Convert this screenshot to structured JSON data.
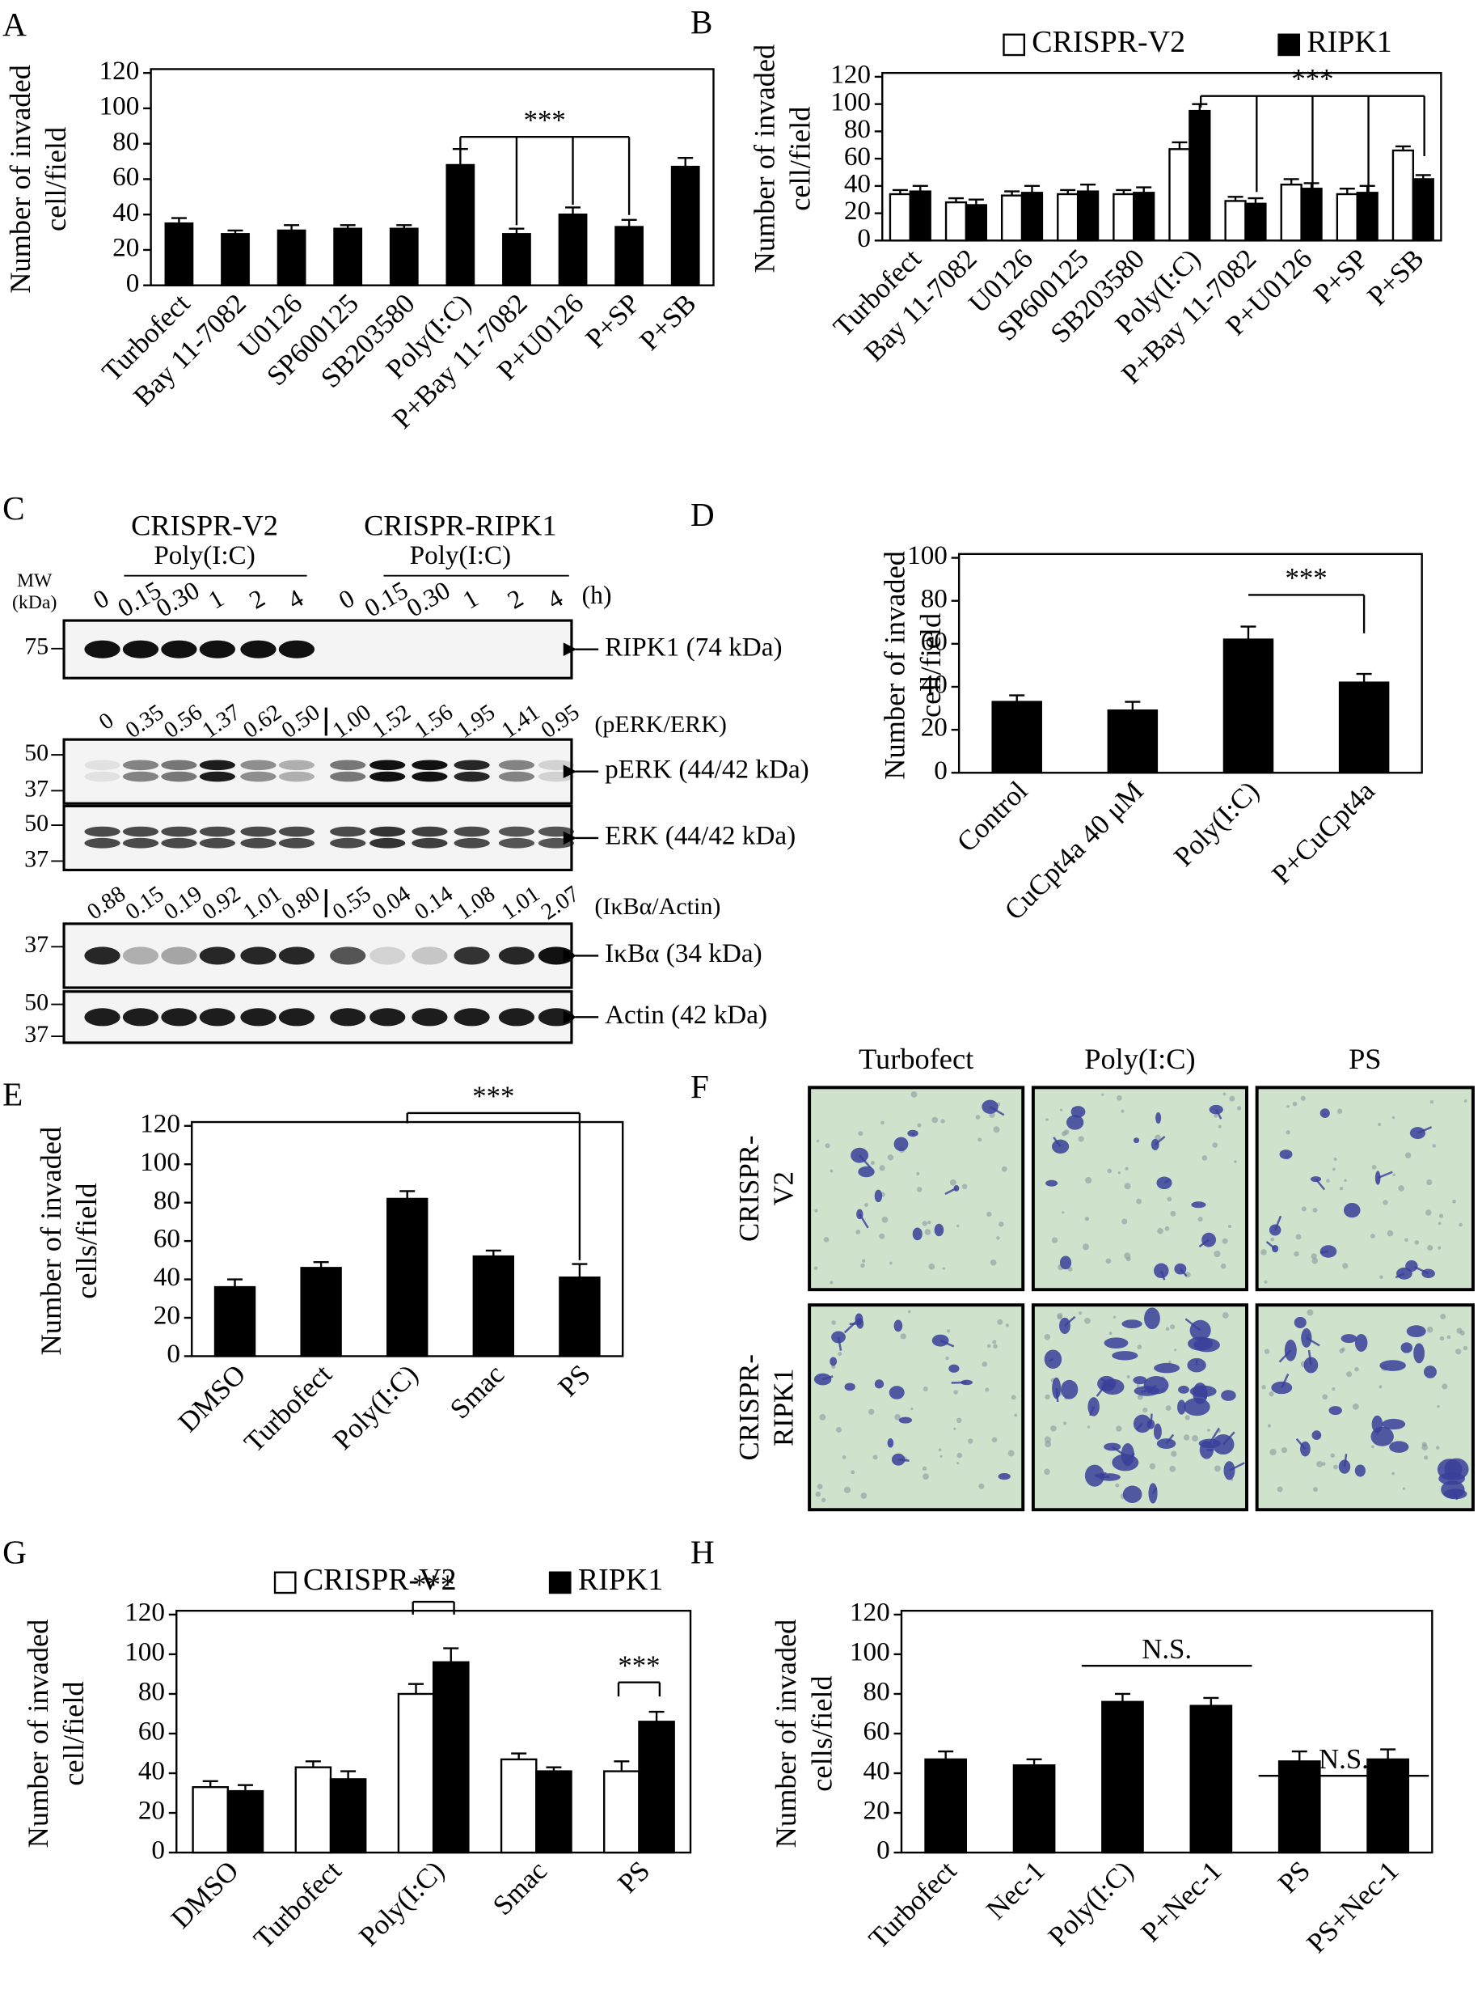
{
  "chart_data": [
    {
      "panel": "A",
      "type": "bar",
      "ylabel": [
        "Number of invaded",
        "cell/field"
      ],
      "categories": [
        "Turbofect",
        "Bay 11-7082",
        "U0126",
        "SP600125",
        "SB203580",
        "Poly(I:C)",
        "P+Bay 11-7082",
        "P+U0126",
        "P+SP",
        "P+SB"
      ],
      "values": [
        35,
        29,
        31,
        32,
        32,
        68,
        29,
        40,
        33,
        67
      ],
      "errors": [
        3,
        2,
        3,
        2,
        2,
        9,
        3,
        4,
        4,
        5
      ],
      "color": "#000000",
      "ylim": [
        0,
        120
      ],
      "yticks": [
        0,
        20,
        40,
        60,
        80,
        100,
        120
      ],
      "annotations": [
        "***"
      ]
    },
    {
      "panel": "B",
      "type": "bar",
      "ylabel": [
        "Number of invaded",
        "cell/field"
      ],
      "categories": [
        "Turbofect",
        "Bay 11-7082",
        "U0126",
        "SP600125",
        "SB203580",
        "Poly(I:C)",
        "P+Bay 11-7082",
        "P+U0126",
        "P+SP",
        "P+SB"
      ],
      "series": [
        {
          "name": "CRISPR-V2",
          "color": "#ffffff",
          "values": [
            34,
            28,
            33,
            34,
            34,
            67,
            29,
            41,
            34,
            66
          ],
          "errors": [
            3,
            3,
            3,
            3,
            3,
            5,
            3,
            4,
            4,
            3
          ]
        },
        {
          "name": "RIPK1",
          "color": "#000000",
          "values": [
            36,
            26,
            35,
            36,
            35,
            95,
            27,
            38,
            35,
            45
          ],
          "errors": [
            4,
            4,
            5,
            5,
            4,
            5,
            4,
            4,
            5,
            3
          ]
        }
      ],
      "legend": "top",
      "ylim": [
        0,
        120
      ],
      "yticks": [
        0,
        20,
        40,
        60,
        80,
        100,
        120
      ],
      "annotations": [
        "***"
      ]
    },
    {
      "panel": "D",
      "type": "bar",
      "ylabel": [
        "Number of invaded",
        "cell/field"
      ],
      "categories": [
        "Control",
        "CuCpt4a 40 μM",
        "Poly(I:C)",
        "P+CuCpt4a"
      ],
      "values": [
        33,
        29,
        62,
        42
      ],
      "errors": [
        3,
        4,
        6,
        4
      ],
      "color": "#000000",
      "ylim": [
        0,
        100
      ],
      "yticks": [
        0,
        20,
        40,
        60,
        80,
        100
      ],
      "annotations": [
        "***"
      ]
    },
    {
      "panel": "E",
      "type": "bar",
      "ylabel": [
        "Number of invaded",
        "cells/field"
      ],
      "categories": [
        "DMSO",
        "Turbofect",
        "Poly(I:C)",
        "Smac",
        "PS"
      ],
      "values": [
        36,
        46,
        82,
        52,
        41
      ],
      "errors": [
        4,
        3,
        4,
        3,
        7
      ],
      "color": "#000000",
      "ylim": [
        0,
        120
      ],
      "yticks": [
        0,
        20,
        40,
        60,
        80,
        100,
        120
      ],
      "annotations": [
        "***"
      ]
    },
    {
      "panel": "G",
      "type": "bar",
      "ylabel": [
        "Number of invaded",
        "cell/field"
      ],
      "categories": [
        "DMSO",
        "Turbofect",
        "Poly(I:C)",
        "Smac",
        "PS"
      ],
      "series": [
        {
          "name": "CRISPR-V2",
          "color": "#ffffff",
          "values": [
            33,
            43,
            80,
            47,
            41
          ],
          "errors": [
            3,
            3,
            5,
            3,
            5
          ]
        },
        {
          "name": "RIPK1",
          "color": "#000000",
          "values": [
            31,
            37,
            96,
            41,
            66
          ],
          "errors": [
            3,
            4,
            7,
            2,
            5
          ]
        }
      ],
      "legend": "top",
      "ylim": [
        0,
        120
      ],
      "yticks": [
        0,
        20,
        40,
        60,
        80,
        100,
        120
      ],
      "annotations": [
        "***",
        "***"
      ]
    },
    {
      "panel": "H",
      "type": "bar",
      "ylabel": [
        "Number of  invaded",
        "cells/field"
      ],
      "categories": [
        "Turbofect",
        "Nec-1",
        "Poly(I:C)",
        "P+Nec-1",
        "PS",
        "PS+Nec-1"
      ],
      "values": [
        47,
        44,
        76,
        74,
        46,
        47
      ],
      "errors": [
        4,
        3,
        4,
        4,
        5,
        5
      ],
      "color": "#000000",
      "ylim": [
        0,
        120
      ],
      "yticks": [
        0,
        20,
        40,
        60,
        80,
        100,
        120
      ],
      "annotations": [
        "N.S.",
        "N.S."
      ]
    }
  ],
  "blot": {
    "panel": "C",
    "mw_title": [
      "MW",
      "(kDa)"
    ],
    "time_unit": "(h)",
    "groups": [
      {
        "name": "CRISPR-V2",
        "treatment": "Poly(I:C)",
        "times": [
          "0",
          "0.15",
          "0.30",
          "1",
          "2",
          "4"
        ]
      },
      {
        "name": "CRISPR-RIPK1",
        "treatment": "Poly(I:C)",
        "times": [
          "0",
          "0.15",
          "0.30",
          "1",
          "2",
          "4"
        ]
      }
    ],
    "strips": [
      {
        "label": "RIPK1 (74 kDa)",
        "markers": [
          "75"
        ]
      },
      {
        "label": "pERK (44/42 kDa)",
        "markers": [
          "50",
          "37"
        ]
      },
      {
        "label": "ERK (44/42 kDa)",
        "markers": [
          "50",
          "37"
        ]
      },
      {
        "label": "IκBα (34 kDa)",
        "markers": [
          "37"
        ]
      },
      {
        "label": "Actin (42 kDa)",
        "markers": [
          "50",
          "37"
        ]
      }
    ],
    "ratios": [
      {
        "label": "(pERK/ERK)",
        "values": [
          "0",
          "0.35",
          "0.56",
          "1.37",
          "0.62",
          "0.50",
          "1.00",
          "1.52",
          "1.56",
          "1.95",
          "1.41",
          "0.95"
        ]
      },
      {
        "label": "(IκBα/Actin)",
        "values": [
          "0.88",
          "0.15",
          "0.19",
          "0.92",
          "1.01",
          "0.80",
          "0.55",
          "0.04",
          "0.14",
          "1.08",
          "1.01",
          "2.07"
        ]
      }
    ]
  },
  "micrographs": {
    "panel": "F",
    "columns": [
      "Turbofect",
      "Poly(I:C)",
      "PS"
    ],
    "rows": [
      [
        "CRISPR-",
        "V2"
      ],
      [
        "CRISPR-",
        "RIPK1"
      ]
    ]
  }
}
